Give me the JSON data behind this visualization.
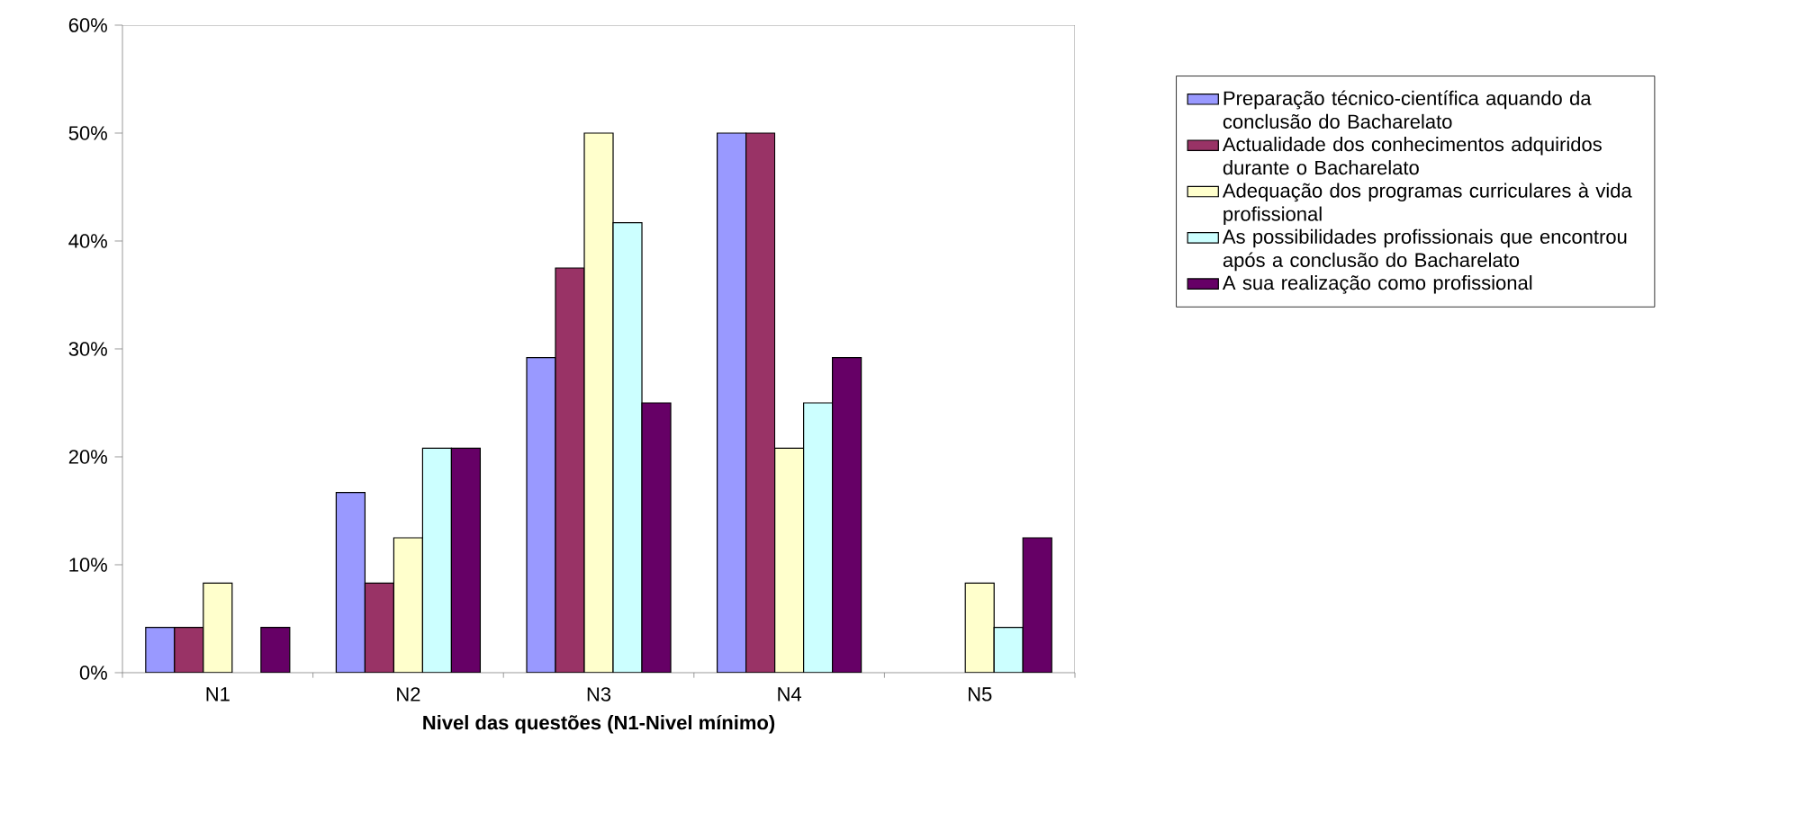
{
  "chart_data": {
    "type": "bar",
    "xlabel": "Nivel das questões (N1-Nivel mínimo)",
    "categories": [
      "N1",
      "N2",
      "N3",
      "N4",
      "N5"
    ],
    "series": [
      {
        "name": "Preparação técnico-científica aquando da conclusão do Bacharelato",
        "color": "#9999ff",
        "values": [
          4.2,
          16.7,
          29.2,
          50,
          null
        ]
      },
      {
        "name": "Actualidade dos conhecimentos adquiridos durante o Bacharelato",
        "color": "#993366",
        "values": [
          4.2,
          8.3,
          37.5,
          50,
          null
        ]
      },
      {
        "name": "Adequação dos programas curriculares à vida profissional",
        "color": "#ffffcc",
        "values": [
          8.3,
          12.5,
          50,
          20.8,
          8.3
        ]
      },
      {
        "name": "As possibilidades profissionais que encontrou após a conclusão do Bacharelato",
        "color": "#ccffff",
        "values": [
          null,
          20.8,
          41.7,
          25,
          4.2
        ]
      },
      {
        "name": "A sua realização como profissional",
        "color": "#660066",
        "values": [
          4.2,
          20.8,
          25,
          29.2,
          12.5
        ]
      }
    ],
    "ylim": [
      0,
      60
    ],
    "yticks": [
      {
        "value": 0,
        "label": "0%"
      },
      {
        "value": 10,
        "label": "10%"
      },
      {
        "value": 20,
        "label": "20%"
      },
      {
        "value": 30,
        "label": "30%"
      },
      {
        "value": 40,
        "label": "40%"
      },
      {
        "value": 50,
        "label": "50%"
      },
      {
        "value": 60,
        "label": "60%"
      }
    ],
    "grid": false,
    "legend": "right"
  }
}
